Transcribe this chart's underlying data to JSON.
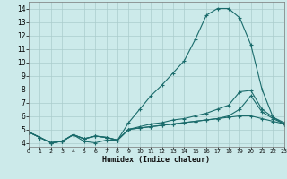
{
  "xlabel": "Humidex (Indice chaleur)",
  "xlim": [
    0,
    23
  ],
  "ylim": [
    3.7,
    14.5
  ],
  "yticks": [
    4,
    5,
    6,
    7,
    8,
    9,
    10,
    11,
    12,
    13,
    14
  ],
  "xticks": [
    0,
    1,
    2,
    3,
    4,
    5,
    6,
    7,
    8,
    9,
    10,
    11,
    12,
    13,
    14,
    15,
    16,
    17,
    18,
    19,
    20,
    21,
    22,
    23
  ],
  "bg_color": "#cceaea",
  "grid_color": "#aacccc",
  "line_color": "#1a6b6b",
  "curves": [
    [
      4.8,
      4.4,
      4.0,
      4.1,
      4.6,
      4.1,
      4.0,
      4.2,
      4.2,
      5.5,
      6.5,
      7.5,
      8.3,
      9.2,
      10.1,
      11.7,
      13.5,
      14.0,
      14.0,
      13.3,
      11.3,
      8.0,
      5.9,
      5.4
    ],
    [
      4.8,
      4.4,
      4.0,
      4.1,
      4.6,
      4.3,
      4.5,
      4.4,
      4.2,
      5.0,
      5.2,
      5.4,
      5.5,
      5.7,
      5.8,
      6.0,
      6.2,
      6.5,
      6.8,
      7.8,
      7.9,
      6.5,
      5.9,
      5.5
    ],
    [
      4.8,
      4.4,
      4.0,
      4.1,
      4.6,
      4.3,
      4.5,
      4.4,
      4.2,
      5.0,
      5.1,
      5.2,
      5.3,
      5.4,
      5.5,
      5.6,
      5.7,
      5.8,
      6.0,
      6.5,
      7.5,
      6.3,
      5.8,
      5.4
    ],
    [
      4.8,
      4.4,
      4.0,
      4.1,
      4.6,
      4.3,
      4.5,
      4.4,
      4.2,
      5.0,
      5.1,
      5.2,
      5.3,
      5.4,
      5.5,
      5.6,
      5.7,
      5.8,
      5.9,
      6.0,
      6.0,
      5.8,
      5.6,
      5.4
    ]
  ]
}
